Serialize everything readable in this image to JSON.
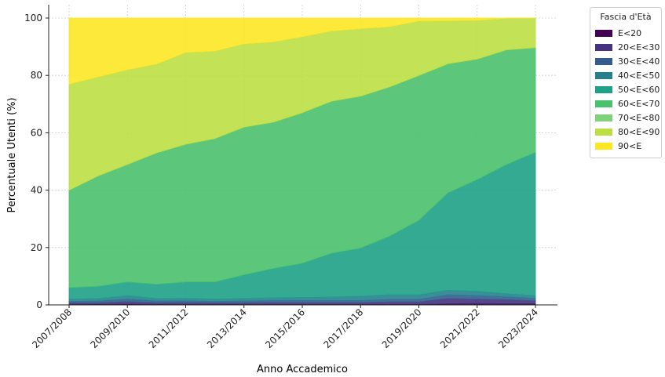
{
  "chart_data": {
    "type": "area",
    "stacked": true,
    "xlabel": "Anno Accademico",
    "ylabel": "Percentuale Utenti (%)",
    "ylim": [
      0,
      100
    ],
    "yticks": [
      0,
      20,
      40,
      60,
      80,
      100
    ],
    "grid": true,
    "legend_title": "Fascia d'Età",
    "legend_position": "outside-right",
    "categories": [
      "2007/2008",
      "2008/2009",
      "2009/2010",
      "2010/2011",
      "2011/2012",
      "2012/2013",
      "2013/2014",
      "2014/2015",
      "2015/2016",
      "2016/2017",
      "2017/2018",
      "2018/2019",
      "2019/2020",
      "2020/2021",
      "2021/2022",
      "2022/2023",
      "2023/2024"
    ],
    "xtick_labels": [
      "2007/2008",
      "2009/2010",
      "2011/2012",
      "2013/2014",
      "2015/2016",
      "2017/2018",
      "2019/2020",
      "2021/2022",
      "2023/2024"
    ],
    "series": [
      {
        "name": "E<20",
        "color": "#440154",
        "values": [
          0.2,
          0.2,
          0.3,
          0.2,
          0.2,
          0.2,
          0.2,
          0.2,
          0.2,
          0.2,
          0.2,
          0.2,
          0.2,
          0.4,
          0.5,
          0.4,
          0.4
        ]
      },
      {
        "name": "20<E<30",
        "color": "#46327e",
        "values": [
          0.5,
          0.5,
          0.8,
          0.5,
          0.6,
          0.5,
          0.5,
          0.6,
          0.6,
          0.6,
          0.6,
          0.8,
          0.8,
          1.8,
          1.5,
          1.4,
          1.0
        ]
      },
      {
        "name": "30<E<40",
        "color": "#365c8d",
        "values": [
          0.5,
          0.6,
          0.9,
          0.6,
          0.6,
          0.5,
          0.6,
          0.7,
          0.7,
          0.7,
          0.7,
          0.9,
          0.9,
          1.3,
          1.2,
          1.0,
          0.8
        ]
      },
      {
        "name": "40<E<50",
        "color": "#277f8e",
        "values": [
          0.8,
          0.9,
          1.2,
          0.9,
          0.9,
          0.8,
          0.9,
          1.0,
          1.1,
          1.2,
          1.5,
          1.6,
          1.6,
          1.6,
          1.5,
          1.1,
          1.0
        ]
      },
      {
        "name": "50<E<60",
        "color": "#1fa187",
        "values": [
          4.0,
          4.3,
          4.8,
          5.0,
          5.7,
          6.0,
          8.3,
          10.2,
          11.9,
          15.3,
          16.8,
          20.5,
          26.0,
          34.0,
          39.0,
          45.0,
          50.0
        ]
      },
      {
        "name": "60<E<70",
        "color": "#4ac16d",
        "values": [
          34.0,
          38.5,
          41.0,
          45.8,
          48.0,
          50.0,
          51.5,
          51.0,
          52.5,
          53.0,
          53.0,
          52.0,
          50.5,
          45.0,
          42.0,
          40.0,
          36.5
        ]
      },
      {
        "name": "70<E<80",
        "color": "#7fd279",
        "values": [
          0,
          0,
          0,
          0,
          0,
          0,
          0,
          0,
          0,
          0,
          0,
          0,
          0,
          0,
          0,
          0,
          0
        ]
      },
      {
        "name": "80<E<90",
        "color": "#bddf44",
        "values": [
          37.0,
          34.5,
          33.0,
          31.0,
          32.0,
          30.5,
          29.0,
          28.0,
          26.5,
          24.5,
          23.5,
          21.0,
          19.0,
          15.0,
          13.5,
          11.0,
          10.3
        ]
      },
      {
        "name": "90<E",
        "color": "#fde725",
        "values": [
          23.0,
          20.5,
          18.0,
          16.0,
          12.0,
          11.5,
          9.0,
          8.3,
          6.5,
          4.5,
          3.7,
          3.0,
          1.0,
          0.9,
          0.8,
          0.1,
          0.0
        ]
      }
    ]
  }
}
